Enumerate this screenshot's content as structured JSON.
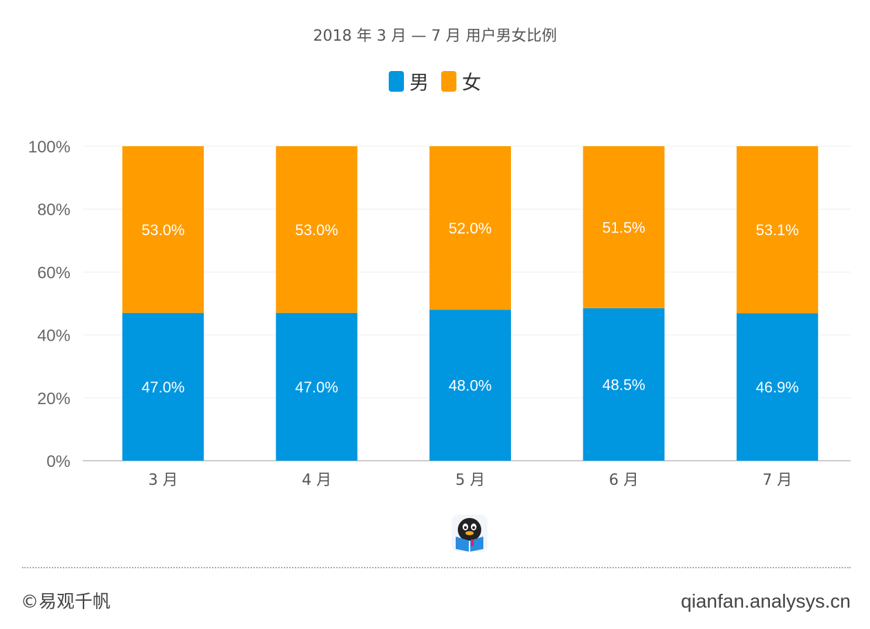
{
  "chart_data": {
    "type": "bar",
    "stacked": true,
    "title": "2018 年 3 月 — 7 月 用户男女比例",
    "categories": [
      "3 月",
      "4 月",
      "5 月",
      "6 月",
      "7 月"
    ],
    "series": [
      {
        "name": "男",
        "color": "#0096e0",
        "values": [
          47.0,
          47.0,
          48.0,
          48.5,
          46.9
        ],
        "labels": [
          "47.0%",
          "47.0%",
          "48.0%",
          "48.5%",
          "46.9%"
        ]
      },
      {
        "name": "女",
        "color": "#ff9c00",
        "values": [
          53.0,
          53.0,
          52.0,
          51.5,
          53.1
        ],
        "labels": [
          "53.0%",
          "53.0%",
          "52.0%",
          "51.5%",
          "53.1%"
        ]
      }
    ],
    "yticks": [
      "0%",
      "20%",
      "40%",
      "60%",
      "80%",
      "100%"
    ],
    "ylim": [
      0,
      100
    ],
    "grid": true,
    "legend_position": "top-center"
  },
  "footer": {
    "left_text": "©易观千帆",
    "right_text": "qianfan.analysys.cn"
  },
  "logo_icon": "penguin-book-icon"
}
